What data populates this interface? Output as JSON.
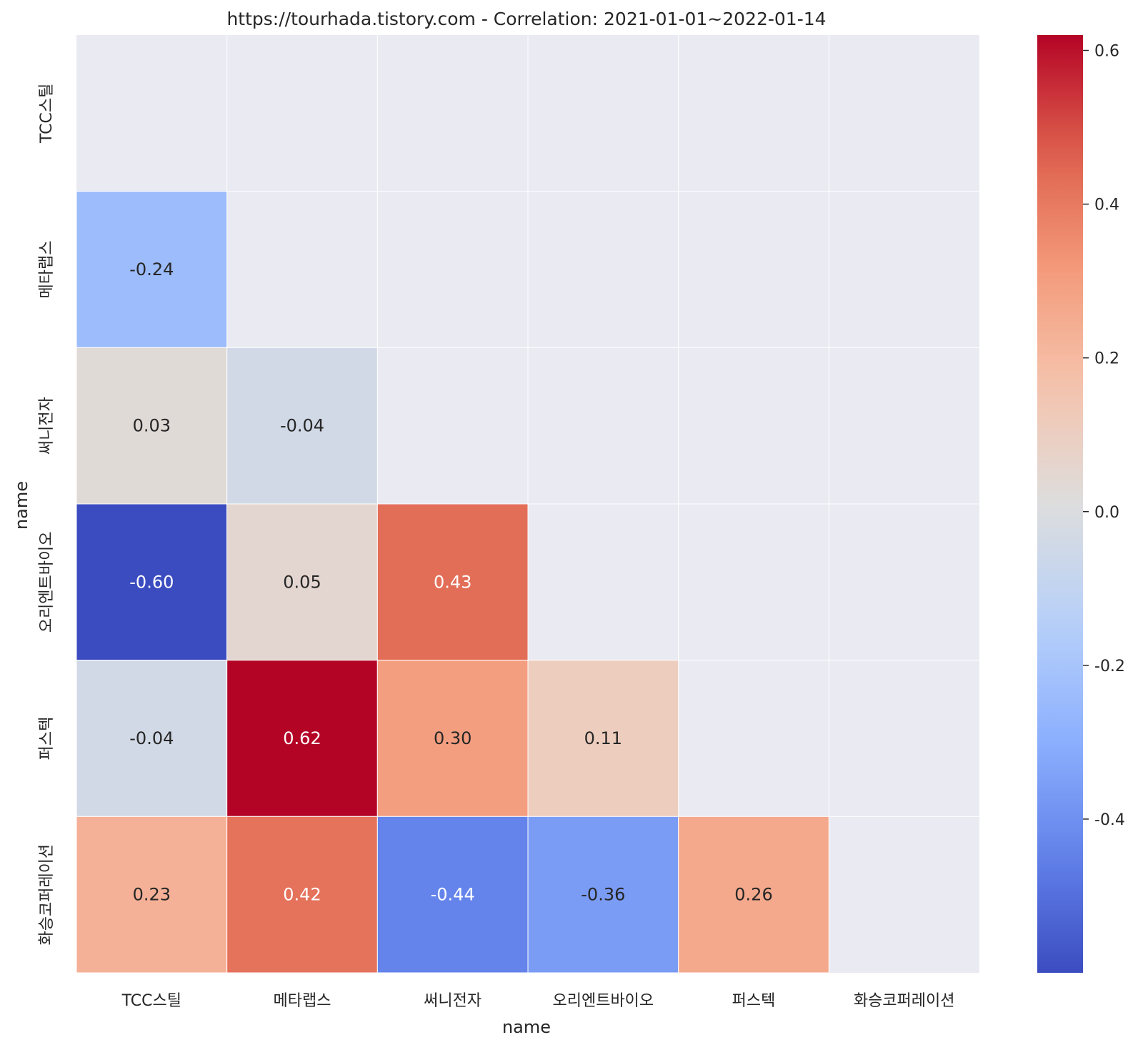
{
  "chart_data": {
    "type": "heatmap",
    "title": "https://tourhada.tistory.com - Correlation: 2021-01-01~2022-01-14",
    "xlabel": "name",
    "ylabel": "name",
    "labels": [
      "TCC스틸",
      "메타랩스",
      "써니전자",
      "오리엔트바이오",
      "퍼스텍",
      "화승코퍼레이션"
    ],
    "mask": "upper triangle including diagonal",
    "matrix": [
      [
        null,
        null,
        null,
        null,
        null,
        null
      ],
      [
        -0.24,
        null,
        null,
        null,
        null,
        null
      ],
      [
        0.03,
        -0.04,
        null,
        null,
        null,
        null
      ],
      [
        -0.6,
        0.05,
        0.43,
        null,
        null,
        null
      ],
      [
        -0.04,
        0.62,
        0.3,
        0.11,
        null,
        null
      ],
      [
        0.23,
        0.42,
        -0.44,
        -0.36,
        0.26,
        null
      ]
    ],
    "value_format": "0.00",
    "colormap": "coolwarm",
    "vmin": -0.6,
    "vmax": 0.62,
    "colorbar_ticks": [
      "-0.4",
      "-0.2",
      "0.0",
      "0.2",
      "0.4",
      "0.6"
    ],
    "colorbar_tick_values": [
      -0.4,
      -0.2,
      0.0,
      0.2,
      0.4,
      0.6
    ]
  },
  "colors": {
    "masked_background": "#eaeaf2",
    "grid_line": "#ffffff",
    "text_dark": "#262626",
    "text_light": "#ffffff"
  }
}
